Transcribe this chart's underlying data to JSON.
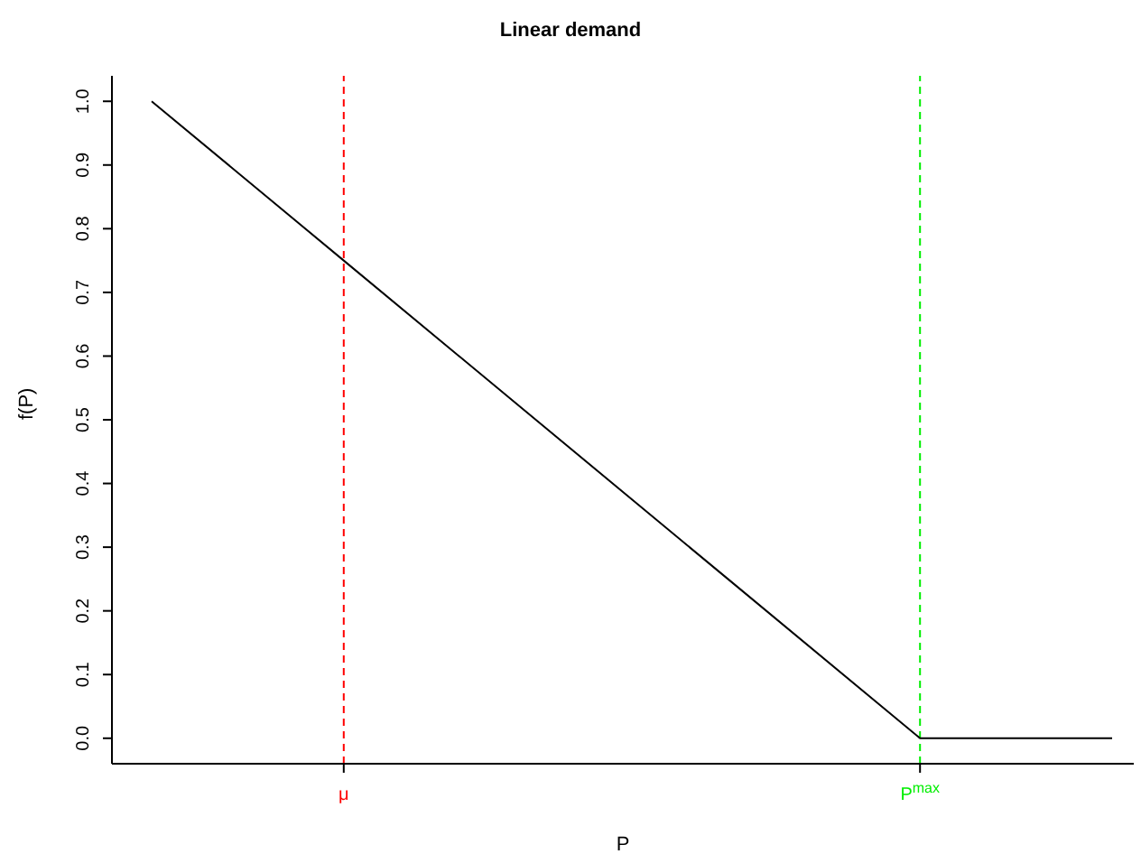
{
  "chart_data": {
    "type": "line",
    "title": "Linear demand",
    "xlabel": "P",
    "ylabel": "f(P)",
    "categories": [
      null,
      "μ",
      null,
      null,
      "P$^{max}$",
      null
    ],
    "series": [
      {
        "color": "#000000",
        "values": [
          1,
          0.75,
          0.5,
          0.25,
          0,
          0
        ]
      }
    ],
    "ylim": [
      -0.04,
      1.04
    ],
    "yticks": [
      {
        "value": 0,
        "label": "0.0"
      },
      0.1,
      0.2,
      0.3,
      0.4,
      0.5,
      0.6,
      0.7,
      0.8,
      0.9,
      {
        "value": 1,
        "label": "1.0"
      }
    ],
    "ref_lines": [
      {
        "axis": "x",
        "value": "μ",
        "color": "#ff0000",
        "line_style": "dashed"
      },
      {
        "axis": "x",
        "value": "P$^{max}$",
        "color": "#00ee00",
        "line_style": "dashed"
      }
    ],
    "marker": "none",
    "line_style": "solid",
    "grid": false,
    "legend": false
  }
}
